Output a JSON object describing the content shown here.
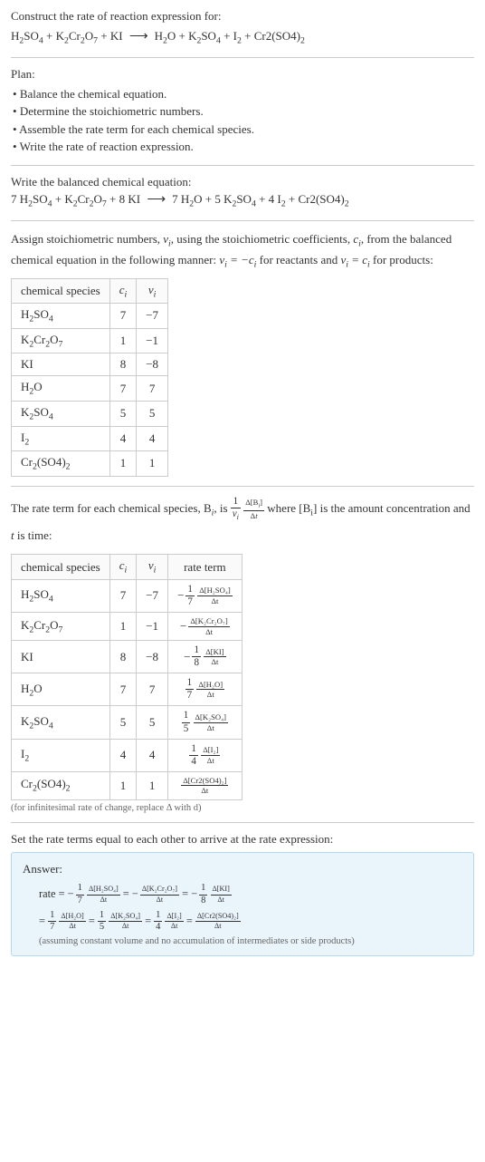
{
  "header": {
    "title": "Construct the rate of reaction expression for:",
    "equation_lhs": "H₂SO₄ + K₂Cr₂O₇ + KI",
    "equation_rhs": "H₂O + K₂SO₄ + I₂ + Cr2(SO4)₂"
  },
  "plan": {
    "label": "Plan:",
    "items": [
      "Balance the chemical equation.",
      "Determine the stoichiometric numbers.",
      "Assemble the rate term for each chemical species.",
      "Write the rate of reaction expression."
    ]
  },
  "balanced": {
    "label": "Write the balanced chemical equation:",
    "lhs": "7 H₂SO₄ + K₂Cr₂O₇ + 8 KI",
    "rhs": "7 H₂O + 5 K₂SO₄ + 4 I₂ + Cr2(SO4)₂"
  },
  "stoich_section": {
    "intro1": "Assign stoichiometric numbers, ",
    "nu": "νᵢ",
    "intro2": ", using the stoichiometric coefficients, ",
    "ci": "cᵢ",
    "intro3": ", from the balanced chemical equation in the following manner: ",
    "rule_reactants": "νᵢ = −cᵢ",
    "rule_mid": " for reactants and ",
    "rule_products": "νᵢ = cᵢ",
    "rule_end": " for products:",
    "columns": [
      "chemical species",
      "cᵢ",
      "νᵢ"
    ],
    "rows": [
      {
        "sp": "H₂SO₄",
        "c": "7",
        "v": "−7"
      },
      {
        "sp": "K₂Cr₂O₇",
        "c": "1",
        "v": "−1"
      },
      {
        "sp": "KI",
        "c": "8",
        "v": "−8"
      },
      {
        "sp": "H₂O",
        "c": "7",
        "v": "7"
      },
      {
        "sp": "K₂SO₄",
        "c": "5",
        "v": "5"
      },
      {
        "sp": "I₂",
        "c": "4",
        "v": "4"
      },
      {
        "sp": "Cr₂(SO4)₂",
        "c": "1",
        "v": "1"
      }
    ]
  },
  "rate_term_section": {
    "intro1": "The rate term for each chemical species, B",
    "intro1b": "ᵢ",
    "intro2": ", is ",
    "frac1_num": "1",
    "frac1_den": "νᵢ",
    "frac2_num": "Δ[Bᵢ]",
    "frac2_den": "Δt",
    "intro3": " where [Bᵢ] is the amount concentration and ",
    "t_var": "t",
    "intro4": " is time:",
    "columns": [
      "chemical species",
      "cᵢ",
      "νᵢ",
      "rate term"
    ],
    "rows": [
      {
        "sp": "H₂SO₄",
        "c": "7",
        "v": "−7",
        "neg": true,
        "d": "7",
        "num": "Δ[H₂SO₄]"
      },
      {
        "sp": "K₂Cr₂O₇",
        "c": "1",
        "v": "−1",
        "neg": true,
        "d": "",
        "num": "Δ[K₂Cr₂O₇]"
      },
      {
        "sp": "KI",
        "c": "8",
        "v": "−8",
        "neg": true,
        "d": "8",
        "num": "Δ[KI]"
      },
      {
        "sp": "H₂O",
        "c": "7",
        "v": "7",
        "neg": false,
        "d": "7",
        "num": "Δ[H₂O]"
      },
      {
        "sp": "K₂SO₄",
        "c": "5",
        "v": "5",
        "neg": false,
        "d": "5",
        "num": "Δ[K₂SO₄]"
      },
      {
        "sp": "I₂",
        "c": "4",
        "v": "4",
        "neg": false,
        "d": "4",
        "num": "Δ[I₂]"
      },
      {
        "sp": "Cr₂(SO4)₂",
        "c": "1",
        "v": "1",
        "neg": false,
        "d": "",
        "num": "Δ[Cr2(SO4)₂]"
      }
    ],
    "note": "(for infinitesimal rate of change, replace Δ with d)",
    "den_dt": "Δt"
  },
  "final": {
    "intro": "Set the rate terms equal to each other to arrive at the rate expression:",
    "answer_label": "Answer:",
    "rate_label": "rate",
    "terms": [
      {
        "neg": true,
        "coef_num": "1",
        "coef_den": "7",
        "num": "Δ[H₂SO₄]",
        "den": "Δt"
      },
      {
        "neg": true,
        "coef_num": "",
        "coef_den": "",
        "num": "Δ[K₂Cr₂O₇]",
        "den": "Δt"
      },
      {
        "neg": true,
        "coef_num": "1",
        "coef_den": "8",
        "num": "Δ[KI]",
        "den": "Δt"
      },
      {
        "neg": false,
        "coef_num": "1",
        "coef_den": "7",
        "num": "Δ[H₂O]",
        "den": "Δt"
      },
      {
        "neg": false,
        "coef_num": "1",
        "coef_den": "5",
        "num": "Δ[K₂SO₄]",
        "den": "Δt"
      },
      {
        "neg": false,
        "coef_num": "1",
        "coef_den": "4",
        "num": "Δ[I₂]",
        "den": "Δt"
      },
      {
        "neg": false,
        "coef_num": "",
        "coef_den": "",
        "num": "Δ[Cr2(SO4)₂]",
        "den": "Δt"
      }
    ],
    "note": "(assuming constant volume and no accumulation of intermediates or side products)"
  },
  "style": {
    "bg": "#ffffff",
    "text": "#333333",
    "divider": "#cccccc",
    "answer_bg": "#eaf4fb",
    "answer_border": "#b5d9ee",
    "note_color": "#666666",
    "base_fontsize": 13,
    "note_fontsize": 10.5
  }
}
